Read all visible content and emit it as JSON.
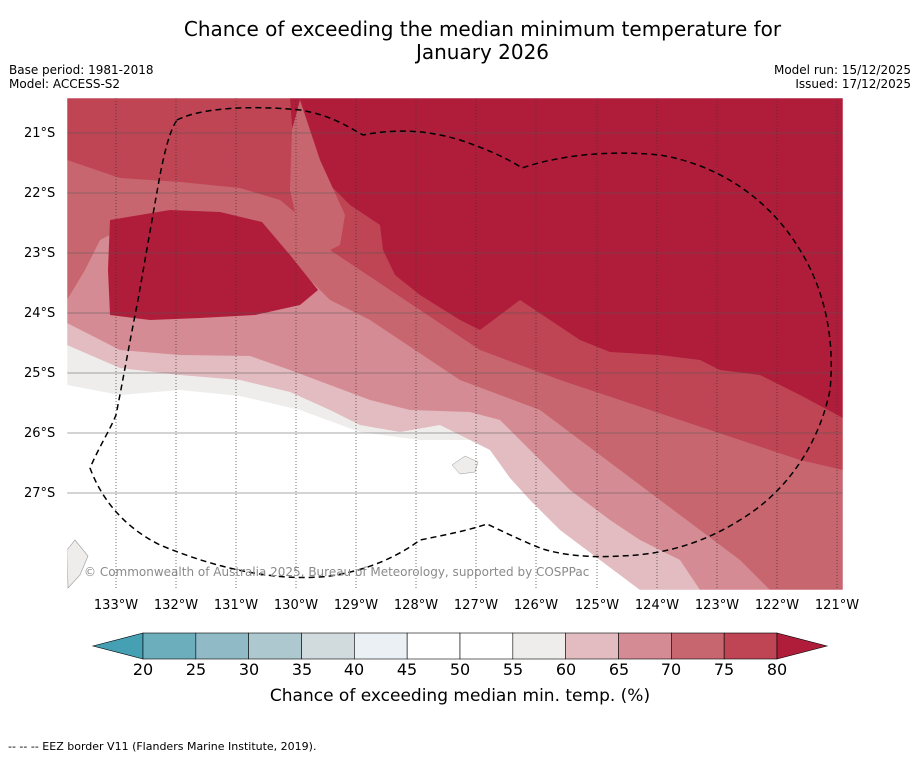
{
  "title_line1": "Chance of exceeding the median minimum temperature for",
  "title_line2": "January 2026",
  "meta_left": {
    "base_period": "Base period: 1981-2018",
    "model": "Model: ACCESS-S2"
  },
  "meta_right": {
    "model_run": "Model run: 15/12/2025",
    "issued": "Issued: 17/12/2025"
  },
  "map": {
    "lat_labels": [
      "21°S",
      "22°S",
      "23°S",
      "24°S",
      "25°S",
      "26°S",
      "27°S"
    ],
    "lon_labels": [
      "133°W",
      "132°W",
      "131°W",
      "130°W",
      "129°W",
      "128°W",
      "127°W",
      "126°W",
      "125°W",
      "124°W",
      "123°W",
      "122°W",
      "121°W"
    ],
    "copyright": "© Commonwealth of Australia 2025, Bureau of Meteorology, supported by COSPPac"
  },
  "colorbar": {
    "ticks": [
      "20",
      "25",
      "30",
      "35",
      "40",
      "45",
      "50",
      "55",
      "60",
      "65",
      "70",
      "75",
      "80"
    ],
    "colors": [
      "#6daebd",
      "#8fbac6",
      "#adc9cf",
      "#d1dadc",
      "#eaf0f3",
      "#ffffff",
      "#ffffff",
      "#eeedec",
      "#e2bcc0",
      "#d58b93",
      "#c86670",
      "#bf4555"
    ],
    "under_color": "#45a0b3",
    "over_color": "#b01d3a",
    "title": "Chance of exceeding median min. temp. (%)"
  },
  "legend": "--  --  -- EEZ border V11 (Flanders Marine Institute, 2019)."
}
